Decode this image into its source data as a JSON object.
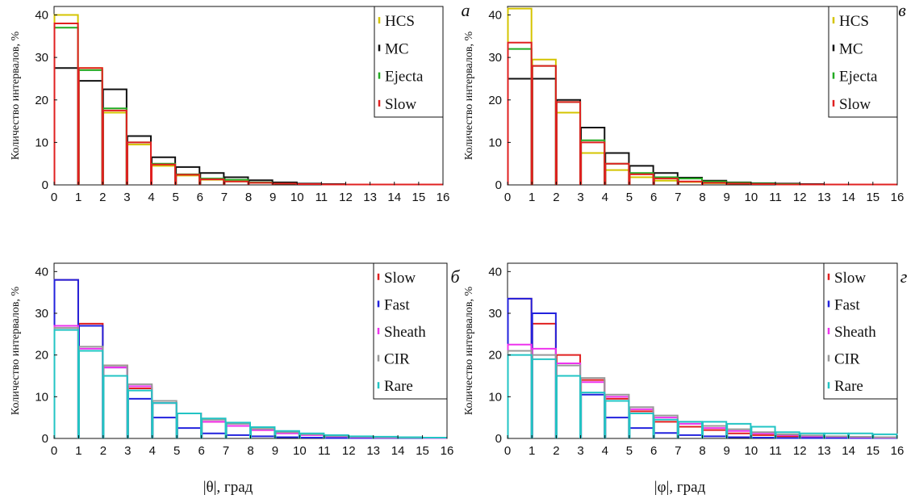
{
  "chart_data": [
    {
      "type": "bar",
      "panel_letter": "а",
      "ylabel": "Количество интервалов, %",
      "xlabel": "",
      "xlim": [
        0,
        16
      ],
      "ylim": [
        0,
        42
      ],
      "x_ticks": [
        "0",
        "1",
        "2",
        "3",
        "4",
        "5",
        "6",
        "7",
        "8",
        "9",
        "10",
        "11",
        "12",
        "13",
        "14",
        "15",
        "16"
      ],
      "y_ticks": [
        "0",
        "10",
        "20",
        "30",
        "40"
      ],
      "legend_position": "top-right",
      "series": [
        {
          "name": "HCS",
          "color": "#d4c400",
          "values": [
            40,
            27.5,
            17,
            9.5,
            4.5,
            2.2,
            1.2,
            0.8,
            0.5,
            0.3,
            0.2,
            0.1,
            0.1,
            0.1,
            0.1,
            0.1
          ]
        },
        {
          "name": "MC",
          "color": "#111111",
          "values": [
            27.5,
            24.5,
            22.5,
            11.5,
            6.5,
            4.2,
            2.8,
            1.8,
            1.1,
            0.6,
            0.3,
            0.2,
            0.1,
            0.1,
            0.1,
            0.1
          ]
        },
        {
          "name": "Ejecta",
          "color": "#22aa22",
          "values": [
            37,
            27,
            18,
            10,
            5,
            2.5,
            1.5,
            1.2,
            0.6,
            0.3,
            0.2,
            0.1,
            0.1,
            0.1,
            0.1,
            0.1
          ]
        },
        {
          "name": "Slow",
          "color": "#e02020",
          "values": [
            38,
            27.5,
            17.5,
            10,
            4.8,
            2.4,
            1.3,
            0.8,
            0.5,
            0.3,
            0.2,
            0.1,
            0.1,
            0.1,
            0.1,
            0.1
          ]
        }
      ]
    },
    {
      "type": "bar",
      "panel_letter": "в",
      "ylabel": "Количество интервалов, %",
      "xlabel": "",
      "xlim": [
        0,
        16
      ],
      "ylim": [
        0,
        42
      ],
      "x_ticks": [
        "0",
        "1",
        "2",
        "3",
        "4",
        "5",
        "6",
        "7",
        "8",
        "9",
        "10",
        "11",
        "12",
        "13",
        "14",
        "15",
        "16"
      ],
      "y_ticks": [
        "0",
        "10",
        "20",
        "30",
        "40"
      ],
      "legend_position": "top-right",
      "series": [
        {
          "name": "HCS",
          "color": "#d4c400",
          "values": [
            41.5,
            29.5,
            17,
            7.5,
            3.5,
            1.8,
            1,
            0.7,
            0.4,
            0.3,
            0.2,
            0.1,
            0.1,
            0.1,
            0.1,
            0.1
          ]
        },
        {
          "name": "MC",
          "color": "#111111",
          "values": [
            25,
            25,
            20,
            13.5,
            7.5,
            4.5,
            2.8,
            1.7,
            1,
            0.6,
            0.4,
            0.3,
            0.2,
            0.1,
            0.1,
            0.1
          ]
        },
        {
          "name": "Ejecta",
          "color": "#22aa22",
          "values": [
            32,
            28,
            19.5,
            10.5,
            5,
            2.8,
            1.8,
            1.5,
            0.8,
            0.5,
            0.3,
            0.2,
            0.1,
            0.1,
            0.1,
            0.1
          ]
        },
        {
          "name": "Slow",
          "color": "#e02020",
          "values": [
            33.5,
            28,
            19.5,
            10,
            5,
            2.5,
            1.5,
            0.8,
            0.5,
            0.3,
            0.2,
            0.1,
            0.1,
            0.1,
            0.1,
            0.1
          ]
        }
      ]
    },
    {
      "type": "bar",
      "panel_letter": "б",
      "ylabel": "Количество интервалов, %",
      "xlabel": "|θ|, град",
      "xlim": [
        0,
        16
      ],
      "ylim": [
        0,
        42
      ],
      "x_ticks": [
        "0",
        "1",
        "2",
        "3",
        "4",
        "5",
        "6",
        "7",
        "8",
        "9",
        "10",
        "11",
        "12",
        "13",
        "14",
        "15",
        "16"
      ],
      "y_ticks": [
        "0",
        "10",
        "20",
        "30",
        "40"
      ],
      "legend_position": "top-right",
      "series": [
        {
          "name": "Slow",
          "color": "#e02020",
          "values": [
            38,
            27.5,
            17.5,
            12,
            8.5,
            6,
            4,
            3,
            2,
            1.5,
            1,
            0.6,
            0.4,
            0.3,
            0.2,
            0.2
          ]
        },
        {
          "name": "Fast",
          "color": "#2222dd",
          "values": [
            38,
            27,
            17,
            9.5,
            5,
            2.5,
            1.2,
            0.8,
            0.5,
            0.3,
            0.2,
            0.1,
            0.1,
            0.1,
            0.1,
            0.1
          ]
        },
        {
          "name": "Sheath",
          "color": "#ee33ee",
          "values": [
            27,
            21.5,
            17,
            12.5,
            8.5,
            6,
            4,
            3,
            2,
            1.2,
            0.8,
            0.5,
            0.3,
            0.2,
            0.2,
            0.1
          ]
        },
        {
          "name": "CIR",
          "color": "#999999",
          "values": [
            26.5,
            22,
            17.5,
            13,
            9,
            6,
            4.5,
            3.5,
            2.3,
            1.5,
            1,
            0.6,
            0.4,
            0.3,
            0.2,
            0.2
          ]
        },
        {
          "name": "Rare",
          "color": "#22c4c4",
          "values": [
            26,
            21,
            15,
            11.5,
            8.5,
            6,
            4.8,
            3.8,
            2.7,
            1.8,
            1.2,
            0.8,
            0.5,
            0.4,
            0.3,
            0.2
          ]
        }
      ]
    },
    {
      "type": "bar",
      "panel_letter": "г",
      "ylabel": "Количество интервалов, %",
      "xlabel": "|φ|, град",
      "xlim": [
        0,
        16
      ],
      "ylim": [
        0,
        42
      ],
      "x_ticks": [
        "0",
        "1",
        "2",
        "3",
        "4",
        "5",
        "6",
        "7",
        "8",
        "9",
        "10",
        "11",
        "12",
        "13",
        "14",
        "15",
        "16"
      ],
      "y_ticks": [
        "0",
        "10",
        "20",
        "30",
        "40"
      ],
      "legend_position": "top-right",
      "series": [
        {
          "name": "Slow",
          "color": "#e02020",
          "values": [
            33.5,
            27.5,
            20,
            14,
            9.5,
            6.5,
            4,
            2.8,
            2,
            1.2,
            0.8,
            0.5,
            0.3,
            0.2,
            0.2,
            0.1
          ]
        },
        {
          "name": "Fast",
          "color": "#2222dd",
          "values": [
            33.5,
            30,
            18,
            10.5,
            5,
            2.5,
            1.3,
            0.8,
            0.5,
            0.3,
            0.2,
            0.1,
            0.1,
            0.1,
            0.1,
            0.1
          ]
        },
        {
          "name": "Sheath",
          "color": "#ee33ee",
          "values": [
            22.5,
            21.5,
            18,
            13.5,
            10,
            7,
            5,
            3.5,
            2.5,
            1.8,
            1.2,
            0.8,
            0.5,
            0.4,
            0.3,
            0.2
          ]
        },
        {
          "name": "CIR",
          "color": "#999999",
          "values": [
            21,
            20,
            17.5,
            14.5,
            10.5,
            7.5,
            5.5,
            4,
            3,
            2.2,
            1.5,
            1,
            0.7,
            0.5,
            0.4,
            0.3
          ]
        },
        {
          "name": "Rare",
          "color": "#22c4c4",
          "values": [
            20,
            19,
            15,
            11,
            9,
            6,
            4.5,
            4,
            4,
            3.5,
            2.8,
            1.5,
            1.2,
            1.2,
            1.2,
            1
          ]
        }
      ]
    }
  ]
}
